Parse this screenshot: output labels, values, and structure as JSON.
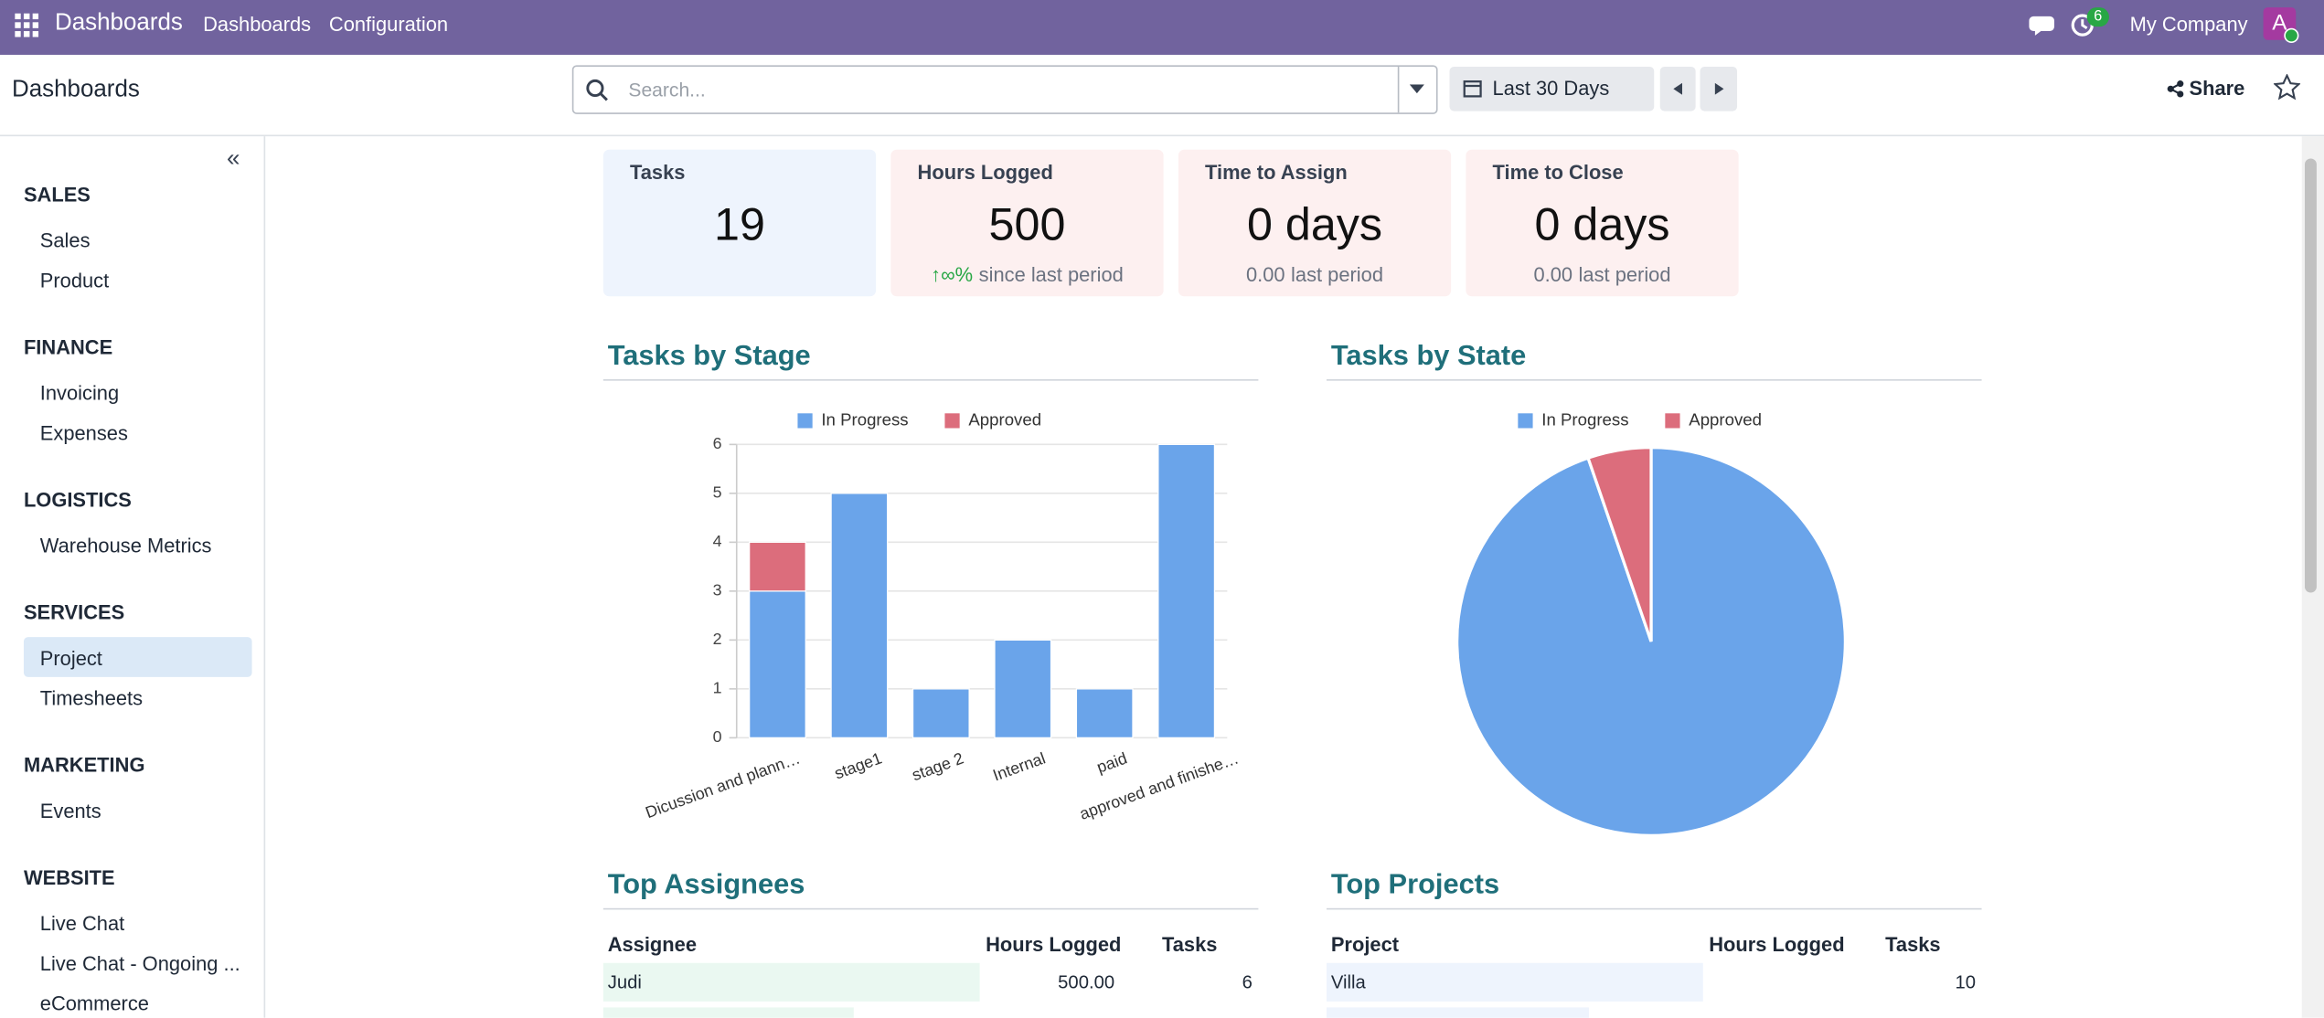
{
  "navbar": {
    "app": "Dashboards",
    "menu": [
      "Dashboards",
      "Configuration"
    ],
    "activity_badge": "6",
    "company": "My Company",
    "avatar": "A"
  },
  "control_panel": {
    "breadcrumb": "Dashboards",
    "search_placeholder": "Search...",
    "period": "Last 30 Days",
    "share": "Share"
  },
  "sidebar": [
    {
      "title": "SALES",
      "items": [
        {
          "label": "Sales"
        },
        {
          "label": "Product"
        }
      ]
    },
    {
      "title": "FINANCE",
      "items": [
        {
          "label": "Invoicing"
        },
        {
          "label": "Expenses"
        }
      ]
    },
    {
      "title": "LOGISTICS",
      "items": [
        {
          "label": "Warehouse Metrics"
        }
      ]
    },
    {
      "title": "SERVICES",
      "items": [
        {
          "label": "Project",
          "selected": true
        },
        {
          "label": "Timesheets"
        }
      ]
    },
    {
      "title": "MARKETING",
      "items": [
        {
          "label": "Events"
        }
      ]
    },
    {
      "title": "WEBSITE",
      "items": [
        {
          "label": "Live Chat"
        },
        {
          "label": "Live Chat - Ongoing ..."
        },
        {
          "label": "eCommerce"
        }
      ]
    }
  ],
  "kpis": [
    {
      "title": "Tasks",
      "value": "19",
      "color": "#eef4fd"
    },
    {
      "title": "Hours Logged",
      "value": "500",
      "change": "∞%",
      "comparison": "since last period",
      "color": "#fdf0f0"
    },
    {
      "title": "Time to Assign",
      "value": "0 days",
      "change": "0.00",
      "comparison": "last period",
      "color": "#fdf0f0"
    },
    {
      "title": "Time to Close",
      "value": "0 days",
      "change": "0.00",
      "comparison": "last period",
      "color": "#fdf0f0"
    }
  ],
  "chart_data": [
    {
      "type": "bar",
      "title": "Tasks by Stage",
      "stacked": true,
      "grid": true,
      "legend": "top",
      "categories": [
        "Dicussion and plann…",
        "stage1",
        "stage 2",
        "Internal",
        "paid",
        "approved and finishe…"
      ],
      "series": [
        {
          "name": "In Progress",
          "color": "#6aa4ea",
          "values": [
            3,
            5,
            1,
            2,
            1,
            6
          ]
        },
        {
          "name": "Approved",
          "color": "#dc6d7c",
          "values": [
            1,
            0,
            0,
            0,
            0,
            0
          ]
        }
      ],
      "ylim": [
        0,
        6
      ],
      "yticks": [
        0,
        1,
        2,
        3,
        4,
        5,
        6
      ]
    },
    {
      "type": "pie",
      "title": "Tasks by State",
      "legend": "top",
      "categories": [
        "In Progress",
        "Approved"
      ],
      "values": [
        18,
        1
      ],
      "colors": [
        "#6aa4ea",
        "#dc6d7c"
      ]
    }
  ],
  "top_assignees": {
    "title": "Top Assignees",
    "columns": [
      "Assignee",
      "Hours Logged",
      "Tasks"
    ],
    "rows": [
      [
        "Judi",
        "500.00",
        "6"
      ]
    ],
    "color": "#eaf8f1"
  },
  "top_projects": {
    "title": "Top Projects",
    "columns": [
      "Project",
      "Hours Logged",
      "Tasks"
    ],
    "rows": [
      [
        "Villa",
        null,
        "10"
      ]
    ],
    "color": "#eef4fd"
  }
}
